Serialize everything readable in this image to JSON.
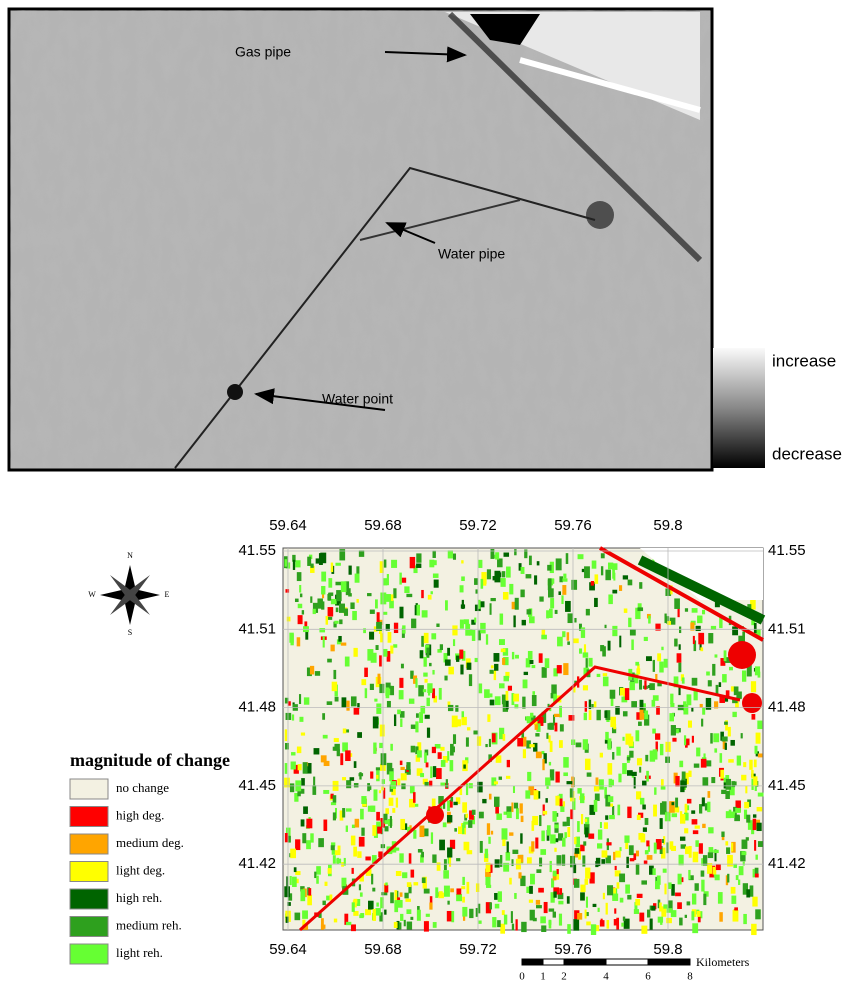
{
  "top_panel": {
    "annotations": [
      "Gas pipe",
      "Water pipe",
      "Water point"
    ],
    "colorbar": {
      "high": "increase",
      "low": "decrease"
    }
  },
  "map": {
    "longitude_ticks": [
      59.64,
      59.68,
      59.72,
      59.76,
      59.8
    ],
    "latitude_ticks": [
      41.55,
      41.51,
      41.48,
      41.45,
      41.42
    ],
    "compass": [
      "N",
      "S",
      "E",
      "W"
    ],
    "legend": {
      "title": "magnitude of change",
      "items": [
        {
          "label": "no change",
          "color": "#f3f1e2"
        },
        {
          "label": "high deg.",
          "color": "#ff0000"
        },
        {
          "label": "medium deg.",
          "color": "#ffa500"
        },
        {
          "label": "light deg.",
          "color": "#ffff00"
        },
        {
          "label": "high reh.",
          "color": "#006400"
        },
        {
          "label": "medium reh.",
          "color": "#2ea01e"
        },
        {
          "label": "light reh.",
          "color": "#66ff33"
        }
      ]
    },
    "scale_bar": {
      "ticks": [
        0,
        1,
        2,
        4,
        6,
        8
      ],
      "unit": "Kilometers"
    }
  }
}
